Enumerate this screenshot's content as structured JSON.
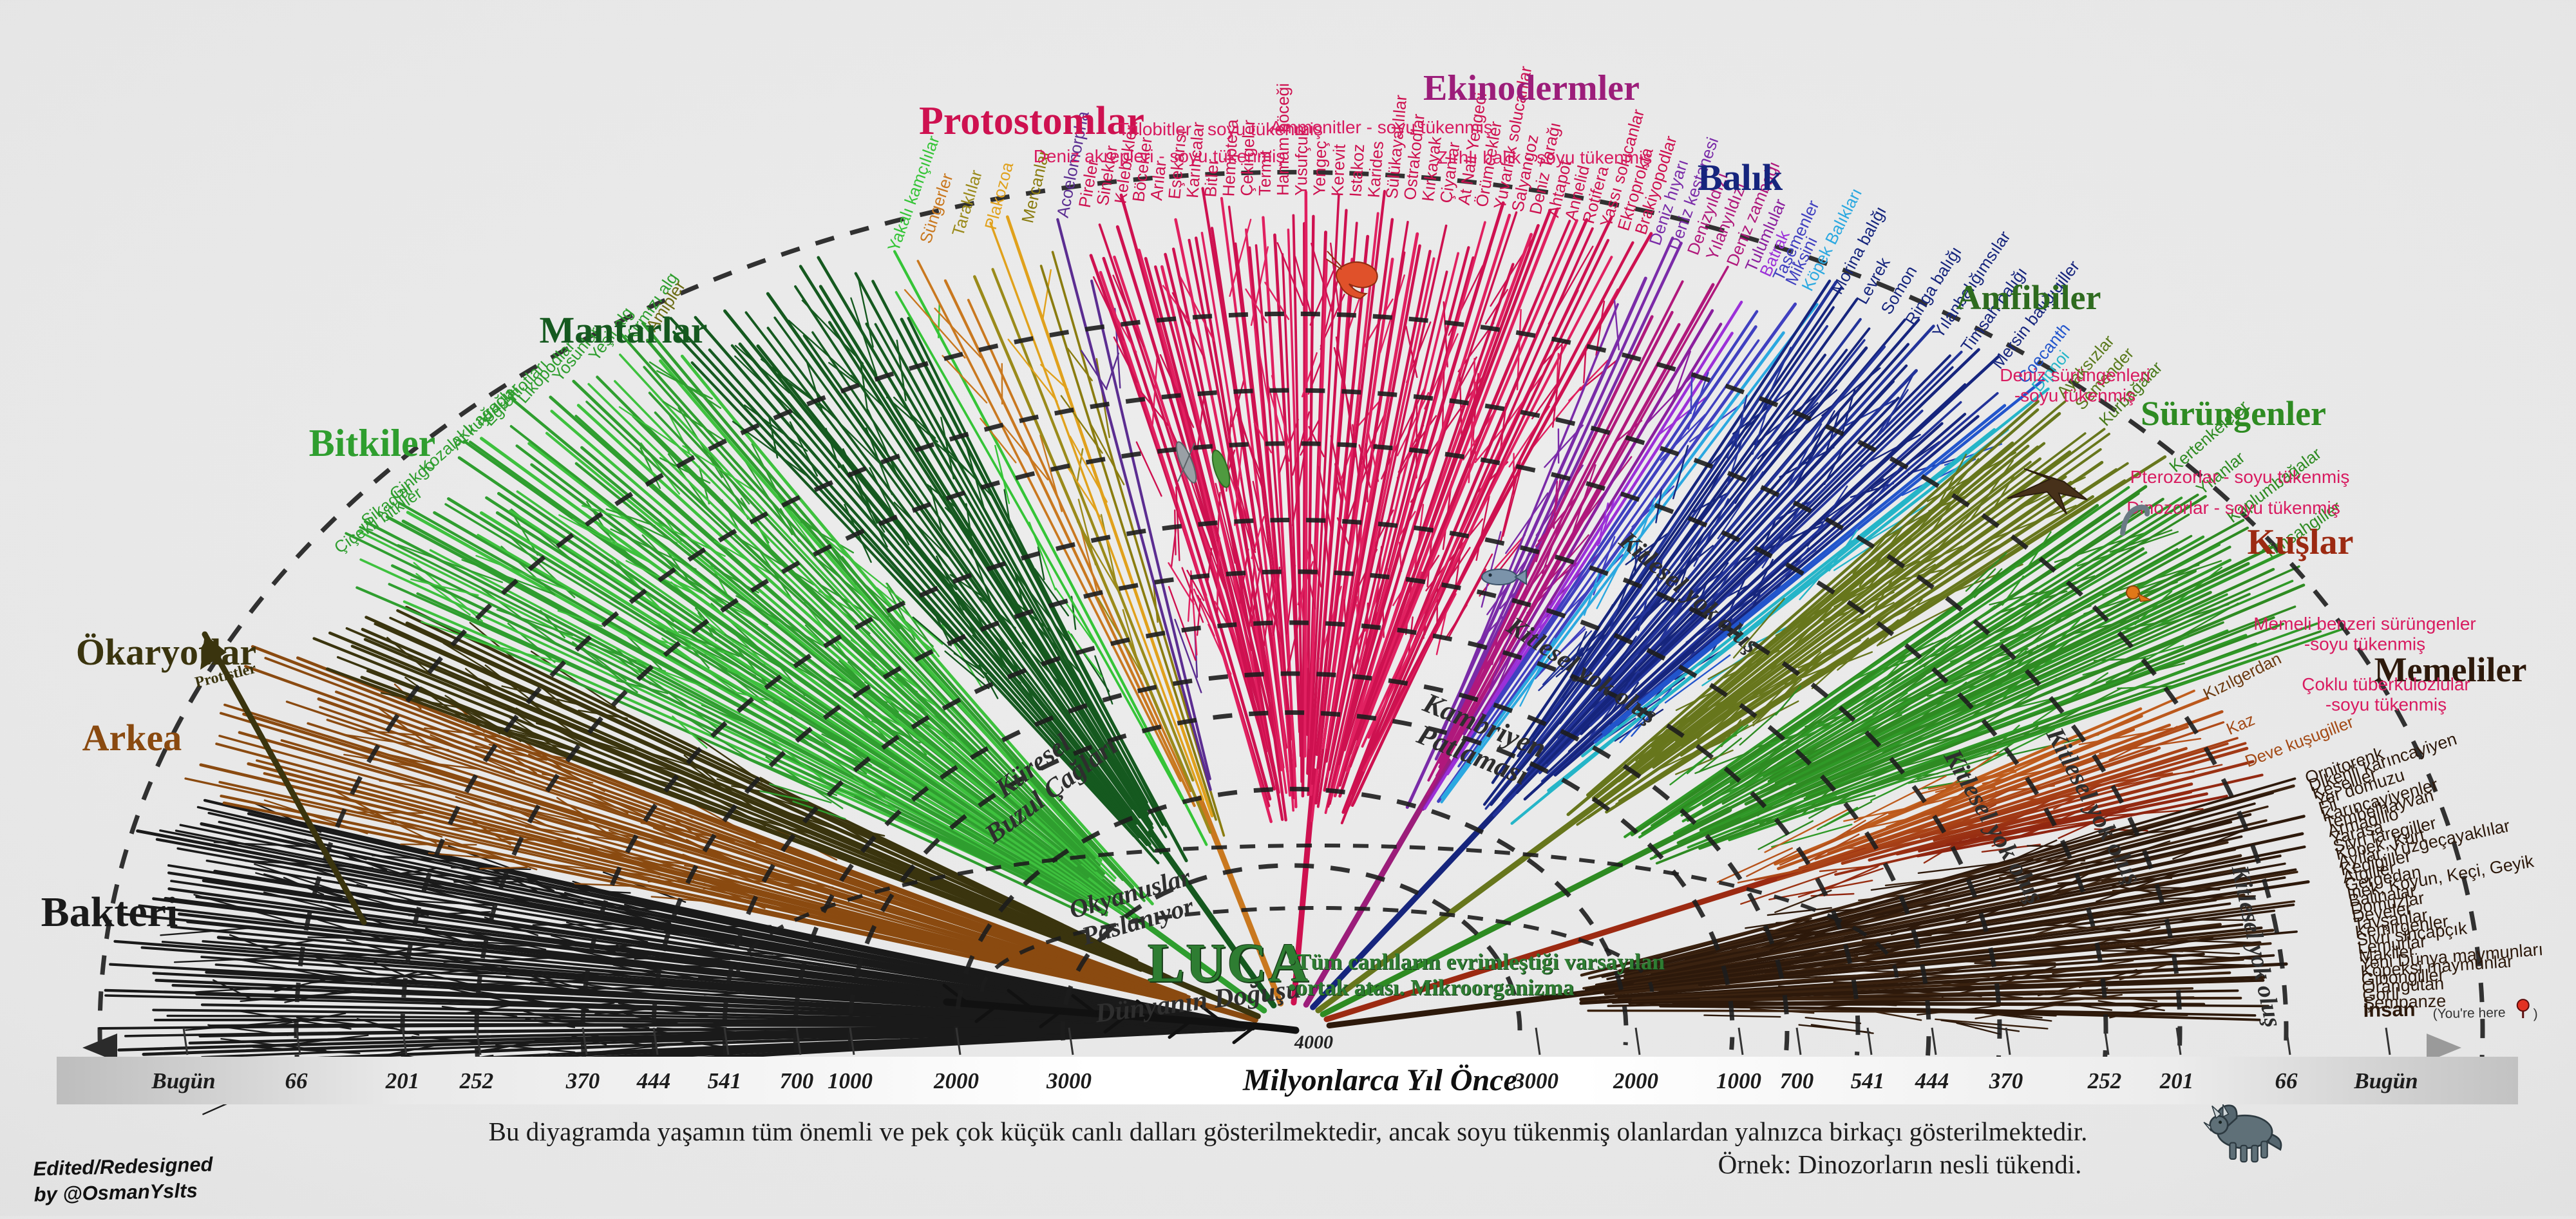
{
  "page": {
    "background": "#e6e6e6"
  },
  "groups": [
    {
      "key": "bacteria",
      "label": "Bakteri",
      "color": "#1a1a1a",
      "tips": []
    },
    {
      "key": "archaea",
      "label": "Arkea",
      "color": "#8a4a10",
      "tips": []
    },
    {
      "key": "protists",
      "label": "Protistler",
      "color": "#3a340e",
      "tips": []
    },
    {
      "key": "plants",
      "label": "Bitkiler",
      "color": "#2f9e2f",
      "tips": [
        {
          "name": "Çiçekli bitkiler"
        },
        {
          "name": "Sikadlar"
        },
        {
          "name": "Ginkgo"
        },
        {
          "name": "Kozalaklı ağaçlar"
        },
        {
          "name": "At kuyruğu"
        },
        {
          "name": "Eğreltiotları"
        },
        {
          "name": "Likopodlar"
        },
        {
          "name": "Yosunlar"
        },
        {
          "name": "Yeşil alg"
        },
        {
          "name": "Kırmızı alg"
        },
        {
          "name": "Amipler",
          "color": "#6b6b12"
        }
      ]
    },
    {
      "key": "fungi",
      "label": "Mantarlar",
      "color": "#15591f",
      "tips": []
    },
    {
      "key": "basal",
      "label": "",
      "color": "#c9781f",
      "tips": [
        {
          "name": "Yakalı kamçılılar",
          "color": "#35c437"
        },
        {
          "name": "Süngerler",
          "color": "#c9781f"
        },
        {
          "name": "Taraklılar",
          "color": "#9a8a1a"
        },
        {
          "name": "Plakozoa",
          "color": "#e0a11c"
        },
        {
          "name": "Mercanlar",
          "color": "#8a7c10"
        },
        {
          "name": "Acoelomorpha",
          "color": "#5b2d91"
        }
      ]
    },
    {
      "key": "protostomes",
      "label": "Protostomlar",
      "color": "#ce1150",
      "tips": [
        {
          "name": "Pireler"
        },
        {
          "name": "Sinekler"
        },
        {
          "name": "Kelebekler"
        },
        {
          "name": "Böcekler"
        },
        {
          "name": "Arılar"
        },
        {
          "name": "Eşekarısı"
        },
        {
          "name": "Karıncalar"
        },
        {
          "name": "Bitler"
        },
        {
          "name": "Hemiptera"
        },
        {
          "name": "Çekirgeler"
        },
        {
          "name": "Termit"
        },
        {
          "name": "Hamam böceği"
        },
        {
          "name": "Yusufçuk"
        },
        {
          "name": "Yengeç"
        },
        {
          "name": "Kerevit"
        },
        {
          "name": "Istakoz"
        },
        {
          "name": "Karides"
        },
        {
          "name": "Sülükayaklılar"
        },
        {
          "name": "Ostrakodlar"
        },
        {
          "name": "Kırkayak"
        },
        {
          "name": "Çiyanlar"
        },
        {
          "name": "At Nalı Yengeci"
        },
        {
          "name": "Örümcekler"
        },
        {
          "name": "Yuvarlak solucanlar"
        },
        {
          "name": "Salyangoz"
        },
        {
          "name": "Deniz Tarağı"
        },
        {
          "name": "Ahtapot"
        },
        {
          "name": "Annelid"
        },
        {
          "name": "Rotifera"
        },
        {
          "name": "Yassı solucanlar"
        },
        {
          "name": "Ektroprokta"
        },
        {
          "name": "Brakiyopodlar"
        }
      ]
    },
    {
      "key": "echinoderms",
      "label": "Ekinodermler",
      "color": "#9c1d7a",
      "tips": [
        {
          "name": "Deniz hıyarı",
          "color": "#7a2ba8"
        },
        {
          "name": "Deniz kestanesi",
          "color": "#7a2ba8"
        },
        {
          "name": "Denizyıldızı",
          "color": "#b0187c"
        },
        {
          "name": "Yılanyıldızı",
          "color": "#b0187c"
        },
        {
          "name": "Deniz zambağı",
          "color": "#b0187c"
        },
        {
          "name": "Tulumlular",
          "color": "#8b1f9e"
        },
        {
          "name": "Batrak",
          "color": "#9b30d8"
        },
        {
          "name": "Taşemenler",
          "color": "#4040c0"
        },
        {
          "name": "Miksini",
          "color": "#4040c0"
        },
        {
          "name": "Köpek Balıkları",
          "color": "#2ba8e0"
        }
      ]
    },
    {
      "key": "fish",
      "label": "Balık",
      "color": "#16257d",
      "tips": [
        {
          "name": "Morina balığı"
        },
        {
          "name": "Levrek"
        },
        {
          "name": "Somon"
        },
        {
          "name": "Ringa balığı"
        },
        {
          "name": "Yılanbalığımsılar"
        },
        {
          "name": "Timsah balığı"
        },
        {
          "name": "Mersin balığıgiller"
        },
        {
          "name": "Coecanth",
          "color": "#2255cc"
        },
        {
          "name": "Dipnoi",
          "color": "#25b5c8"
        }
      ]
    },
    {
      "key": "amphibians",
      "label": "Amfibiler",
      "color": "#2e6b1f",
      "tips": [
        {
          "name": "Ayaksızlar",
          "color": "#5a7a1c"
        },
        {
          "name": "Semender",
          "color": "#5a7a1c"
        },
        {
          "name": "Kurbağalar",
          "color": "#4a7a1c"
        }
      ]
    },
    {
      "key": "reptiles",
      "label": "Sürüngenler",
      "color": "#2e8b22",
      "tips": [
        {
          "name": "Kertenkeleler"
        },
        {
          "name": "Yılanlar"
        },
        {
          "name": "Kaplumbağalar"
        },
        {
          "name": "Timsahgiller"
        }
      ]
    },
    {
      "key": "birds",
      "label": "Kuşlar",
      "color": "#9c2a12",
      "tips": [
        {
          "name": "Kızılgerdan",
          "color": "#6b3a10"
        },
        {
          "name": "Kaz",
          "color": "#a34a16"
        },
        {
          "name": "Deve kuşugiller",
          "color": "#a34a16"
        }
      ]
    },
    {
      "key": "mammals",
      "label": "Memeliler",
      "color": "#2d190b",
      "tips": [
        {
          "name": "Ornitorenk"
        },
        {
          "name": "Dikenli karıncayiyen"
        },
        {
          "name": "Keseliler"
        },
        {
          "name": "Yer domuzu"
        },
        {
          "name": "Fil"
        },
        {
          "name": "Karıncayiyenler"
        },
        {
          "name": "Tembelhayvan"
        },
        {
          "name": "Armadillo"
        },
        {
          "name": "Yarasa"
        },
        {
          "name": "Sivri faregiller"
        },
        {
          "name": "Köpek, Kurt"
        },
        {
          "name": "Ayılar, Yüzgeçayaklılar"
        },
        {
          "name": "Kedigiller"
        },
        {
          "name": "Atgiller"
        },
        {
          "name": "Gergedan"
        },
        {
          "name": "İnek, Koyun, Keçi, Geyik"
        },
        {
          "name": "Balinalar"
        },
        {
          "name": "Domuzlar"
        },
        {
          "name": "Develer"
        },
        {
          "name": "Tavşanlar"
        },
        {
          "name": "Kemirgenler"
        },
        {
          "name": "Sivri sincapçık"
        },
        {
          "name": "Lemurlar"
        },
        {
          "name": "Makiler"
        },
        {
          "name": "Yeni Dünya maymunları"
        },
        {
          "name": "Köpeksi maymunlar"
        },
        {
          "name": "Gibongiller"
        },
        {
          "name": "Orangutan"
        },
        {
          "name": "Goril"
        },
        {
          "name": "Şempanze"
        },
        {
          "name": "İnsan"
        }
      ]
    }
  ],
  "extinct_notes": [
    {
      "key": "trilobit",
      "text": "Trilobitler - soyu tükenmiş"
    },
    {
      "key": "akrep",
      "text": "Deniz akrepleri - soyu tükenmiş"
    },
    {
      "key": "ammonit",
      "text": "Ammonitler - soyu tükenmiş"
    },
    {
      "key": "zirhli",
      "text": "Zırhlı balık - soyu tükenmiş"
    },
    {
      "key": "denizsur",
      "text": "Deniz sürüngenleri\n-soyu tükenmiş"
    },
    {
      "key": "ptero",
      "text": "Pterozorlar - soyu tükenmiş"
    },
    {
      "key": "dino",
      "text": "Dinozorlar - soyu tükenmiş"
    },
    {
      "key": "memelibenzeri",
      "text": "Memeli benzeri sürüngenler\n-soyu tükenmiş"
    },
    {
      "key": "coklu",
      "text": "Çoklu tüberkülozlular\n-soyu tükenmiş"
    }
  ],
  "events": [
    {
      "key": "kuresel",
      "text": "Küresel\nBuzul Çağları"
    },
    {
      "key": "okyanus",
      "text": "Okyanuslar\nPaslanıyor"
    },
    {
      "key": "dunya",
      "text": "Dünyanın Doğuşu"
    },
    {
      "key": "kambriyen",
      "text": "Kambriyen\nPatlaması"
    }
  ],
  "mass_extinction": {
    "label": "Kitlesel yok oluş",
    "occurrences": 5
  },
  "luca": {
    "title": "LUCA",
    "desc1": "•Tüm canlıların evrimleştiği varsayılan",
    "desc2": "•ortak atası. Mikroorganizma"
  },
  "timeline": {
    "ticks_left": [
      "Bugün",
      "66",
      "201",
      "252",
      "370",
      "444",
      "541",
      "700",
      "1000",
      "2000",
      "3000"
    ],
    "ticks_right": [
      "3000",
      "2000",
      "1000",
      "700",
      "541",
      "444",
      "370",
      "252",
      "201",
      "66",
      "Bugün"
    ],
    "inner_label": "4000",
    "center_label": "Milyonlarca Yıl Önce"
  },
  "you_are_here": {
    "open": "(You're here",
    "close": ")"
  },
  "footer": {
    "line1": "Bu diyagramda yaşamın tüm önemli ve pek çok küçük canlı dalları gösterilmektedir, ancak soyu tükenmiş olanlardan yalnızca birkaçı gösterilmektedir.",
    "line2": "Örnek: Dinozorların nesli tükendi.",
    "credit1": "Edited/Redesigned",
    "credit2": "by @OsmanYslts"
  }
}
